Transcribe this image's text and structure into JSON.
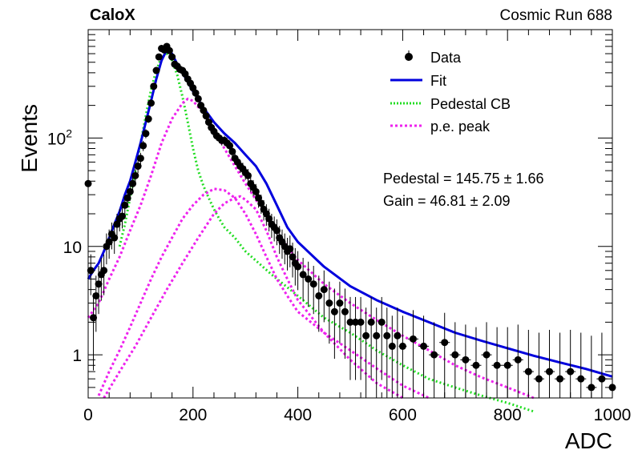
{
  "header": {
    "experiment": "CaloX",
    "run": "Cosmic Run 688"
  },
  "chart_data": {
    "type": "scatter",
    "xlabel": "ADC",
    "ylabel": "Events",
    "xlim": [
      0,
      1000
    ],
    "ylim": [
      0.4,
      1000
    ],
    "yscale": "log",
    "x_ticks": [
      "0",
      "200",
      "400",
      "600",
      "800",
      "1000"
    ],
    "y_ticks": [
      {
        "value": 1,
        "base": "1",
        "exp": ""
      },
      {
        "value": 10,
        "base": "10",
        "exp": ""
      },
      {
        "value": 100,
        "base": "10",
        "exp": "2"
      }
    ],
    "legend_position": "top-right",
    "legend": [
      {
        "label": "Data",
        "style": "marker",
        "color": "#000000"
      },
      {
        "label": "Fit",
        "style": "solid",
        "color": "#0000dd"
      },
      {
        "label": "Pedestal CB",
        "style": "dotted",
        "color": "#22dd22"
      },
      {
        "label": "p.e. peak",
        "style": "dotted",
        "color": "#ee22ee"
      }
    ],
    "annotations": [
      "Pedestal = 145.75 ± 1.66",
      "Gain = 46.81 ± 2.09"
    ],
    "fit_params": {
      "pedestal": 145.75,
      "pedestal_err": 1.66,
      "gain": 46.81,
      "gain_err": 2.09
    },
    "data": {
      "x": [
        0,
        5,
        10,
        15,
        20,
        25,
        30,
        35,
        40,
        45,
        50,
        55,
        60,
        65,
        70,
        75,
        80,
        85,
        90,
        95,
        100,
        105,
        110,
        115,
        120,
        125,
        130,
        135,
        140,
        145,
        150,
        155,
        160,
        165,
        170,
        175,
        180,
        185,
        190,
        195,
        200,
        205,
        210,
        215,
        220,
        225,
        230,
        235,
        240,
        245,
        250,
        255,
        260,
        265,
        270,
        275,
        280,
        285,
        290,
        295,
        300,
        305,
        310,
        315,
        320,
        325,
        330,
        335,
        340,
        345,
        350,
        355,
        360,
        365,
        370,
        375,
        380,
        385,
        390,
        395,
        400,
        410,
        420,
        430,
        440,
        450,
        460,
        470,
        480,
        490,
        500,
        510,
        520,
        530,
        540,
        550,
        560,
        570,
        580,
        590,
        600,
        620,
        640,
        660,
        680,
        700,
        720,
        740,
        760,
        780,
        800,
        820,
        840,
        860,
        880,
        900,
        920,
        940,
        960,
        980,
        1000
      ],
      "y": [
        38,
        6,
        2.2,
        3.5,
        4.5,
        5.5,
        6,
        10,
        11,
        13,
        12,
        16,
        18,
        19,
        24,
        28,
        32,
        38,
        45,
        55,
        65,
        85,
        110,
        150,
        210,
        300,
        420,
        560,
        670,
        650,
        700,
        640,
        560,
        480,
        460,
        430,
        420,
        390,
        350,
        320,
        290,
        260,
        230,
        200,
        180,
        160,
        140,
        125,
        115,
        105,
        100,
        95,
        95,
        90,
        85,
        75,
        65,
        60,
        55,
        52,
        48,
        45,
        38,
        35,
        32,
        28,
        25,
        22,
        20,
        18,
        16,
        15,
        14,
        12,
        11,
        10,
        9,
        9.5,
        8,
        7,
        6.5,
        5.5,
        5,
        4.5,
        3.5,
        4,
        3,
        2.5,
        3,
        2.5,
        2,
        2,
        2,
        1.5,
        2,
        1.5,
        2,
        1.5,
        1.2,
        1.5,
        1.2,
        1.4,
        1.2,
        1,
        1.3,
        1,
        0.9,
        0.8,
        1,
        0.8,
        0.8,
        0.9,
        0.7,
        0.6,
        0.7,
        0.6,
        0.7,
        0.6,
        0.5,
        0.6,
        0.5
      ]
    },
    "series": [
      {
        "name": "Fit",
        "x": [
          0,
          10,
          20,
          30,
          40,
          50,
          60,
          70,
          80,
          90,
          100,
          110,
          120,
          130,
          140,
          150,
          160,
          170,
          180,
          190,
          200,
          220,
          240,
          260,
          280,
          300,
          320,
          340,
          360,
          380,
          400,
          450,
          500,
          550,
          600,
          650,
          700,
          750,
          800,
          850,
          900,
          950,
          1000
        ],
        "y": [
          5,
          6,
          7,
          9,
          12,
          16,
          21,
          30,
          40,
          60,
          90,
          140,
          220,
          350,
          520,
          650,
          600,
          480,
          400,
          330,
          270,
          190,
          140,
          110,
          90,
          70,
          55,
          38,
          24,
          15,
          11,
          6.5,
          4.3,
          3.2,
          2.5,
          2,
          1.6,
          1.35,
          1.15,
          0.98,
          0.85,
          0.74,
          0.63
        ]
      },
      {
        "name": "Pedestal CB",
        "x": [
          60,
          70,
          80,
          90,
          100,
          110,
          120,
          130,
          140,
          150,
          160,
          170,
          180,
          190,
          200,
          210,
          220,
          230,
          240,
          250,
          260,
          280,
          300,
          350,
          400,
          450,
          500,
          550,
          600,
          650,
          700,
          750,
          800,
          850
        ],
        "y": [
          10,
          16,
          28,
          50,
          90,
          160,
          280,
          420,
          560,
          600,
          520,
          380,
          240,
          140,
          80,
          50,
          36,
          28,
          22,
          18,
          15,
          12,
          9,
          5.5,
          3.5,
          2.2,
          1.6,
          1.1,
          0.8,
          0.6,
          0.5,
          0.42,
          0.36,
          0.3
        ]
      },
      {
        "name": "p.e. peak",
        "x": [
          0,
          20,
          40,
          60,
          80,
          100,
          120,
          140,
          160,
          180,
          190,
          200,
          220,
          240,
          260,
          280,
          300,
          320,
          340,
          360,
          380,
          400,
          450,
          500,
          550,
          600,
          650,
          700,
          750,
          800,
          850
        ],
        "y": [
          2.2,
          3,
          5,
          8,
          14,
          24,
          45,
          90,
          150,
          210,
          230,
          220,
          170,
          120,
          80,
          55,
          38,
          27,
          19,
          14,
          10,
          7.5,
          4.5,
          3,
          2.1,
          1.5,
          1.1,
          0.8,
          0.62,
          0.5,
          0.4
        ]
      },
      {
        "name": "p.e. peak 2",
        "x": [
          20,
          40,
          60,
          80,
          100,
          120,
          140,
          160,
          180,
          200,
          220,
          240,
          260,
          280,
          300,
          320,
          340,
          360,
          380,
          400,
          450,
          500,
          550,
          600,
          650
        ],
        "y": [
          0.42,
          0.7,
          1.1,
          1.8,
          3,
          5,
          8,
          12,
          18,
          24,
          30,
          34,
          33,
          28,
          20,
          13,
          8,
          5,
          3.5,
          2.5,
          1.6,
          1.1,
          0.75,
          0.52,
          0.4
        ]
      },
      {
        "name": "p.e. peak 3",
        "x": [
          30,
          60,
          90,
          120,
          150,
          180,
          210,
          240,
          260,
          280,
          290,
          300,
          320,
          340,
          360,
          380,
          400,
          450,
          500,
          550,
          600
        ],
        "y": [
          0.4,
          0.7,
          1.2,
          2.2,
          4,
          7,
          12,
          20,
          25,
          28,
          29,
          27,
          22,
          14,
          8,
          5,
          3.2,
          1.6,
          0.9,
          0.55,
          0.4
        ]
      }
    ]
  },
  "colors": {
    "data": "#000000",
    "fit": "#0000dd",
    "pedestal": "#22dd22",
    "pe": "#ee22ee"
  }
}
